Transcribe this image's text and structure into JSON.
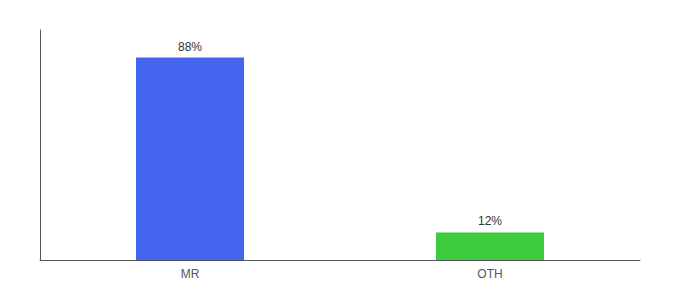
{
  "chart_data": {
    "type": "bar",
    "categories": [
      "MR",
      "OTH"
    ],
    "values": [
      88,
      12
    ],
    "colors": [
      "#4466ee",
      "#3dcc3d"
    ],
    "data_labels": true,
    "value_labels": [
      "88%",
      "12%"
    ],
    "ylim": [
      0,
      100
    ],
    "tick_labels": "x",
    "grid": false
  }
}
